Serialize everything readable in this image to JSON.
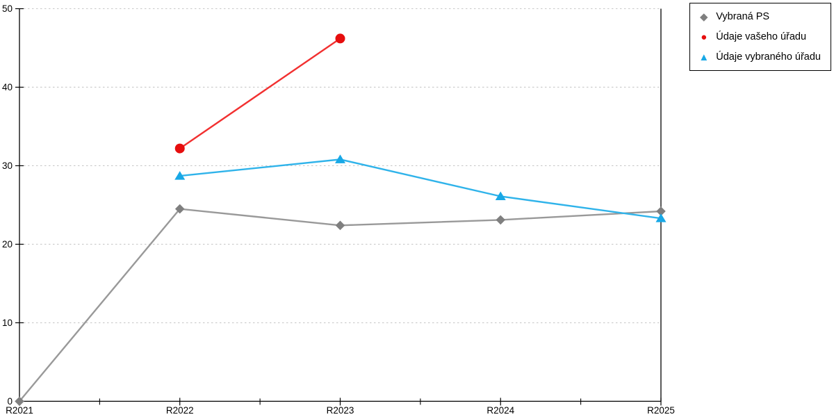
{
  "chart_data": {
    "type": "line",
    "title": "",
    "xlabel": "",
    "ylabel": "",
    "categories": [
      "R2021",
      "R2022",
      "R2023",
      "R2024",
      "R2025"
    ],
    "ylim": [
      0,
      50
    ],
    "yticks": [
      0,
      10,
      20,
      30,
      40,
      50
    ],
    "grid": "horizontal-dotted",
    "grid_color": "#c9c9c9",
    "axis_color": "#000000",
    "legend_position": "top-right",
    "series": [
      {
        "name": "Vybraná PS",
        "marker": "diamond",
        "line_color": "#999999",
        "marker_color": "#7f7f7f",
        "values": [
          0,
          24.5,
          22.4,
          23.1,
          24.2
        ]
      },
      {
        "name": "Údaje vašeho úřadu",
        "marker": "circle",
        "line_color": "#f23030",
        "marker_color": "#e60e0e",
        "values": [
          null,
          32.2,
          46.2,
          null,
          null
        ]
      },
      {
        "name": "Údaje vybraného úřadu",
        "marker": "triangle",
        "line_color": "#2fb3ea",
        "marker_color": "#18a8e6",
        "values": [
          null,
          28.7,
          30.8,
          26.1,
          23.3
        ]
      }
    ]
  }
}
